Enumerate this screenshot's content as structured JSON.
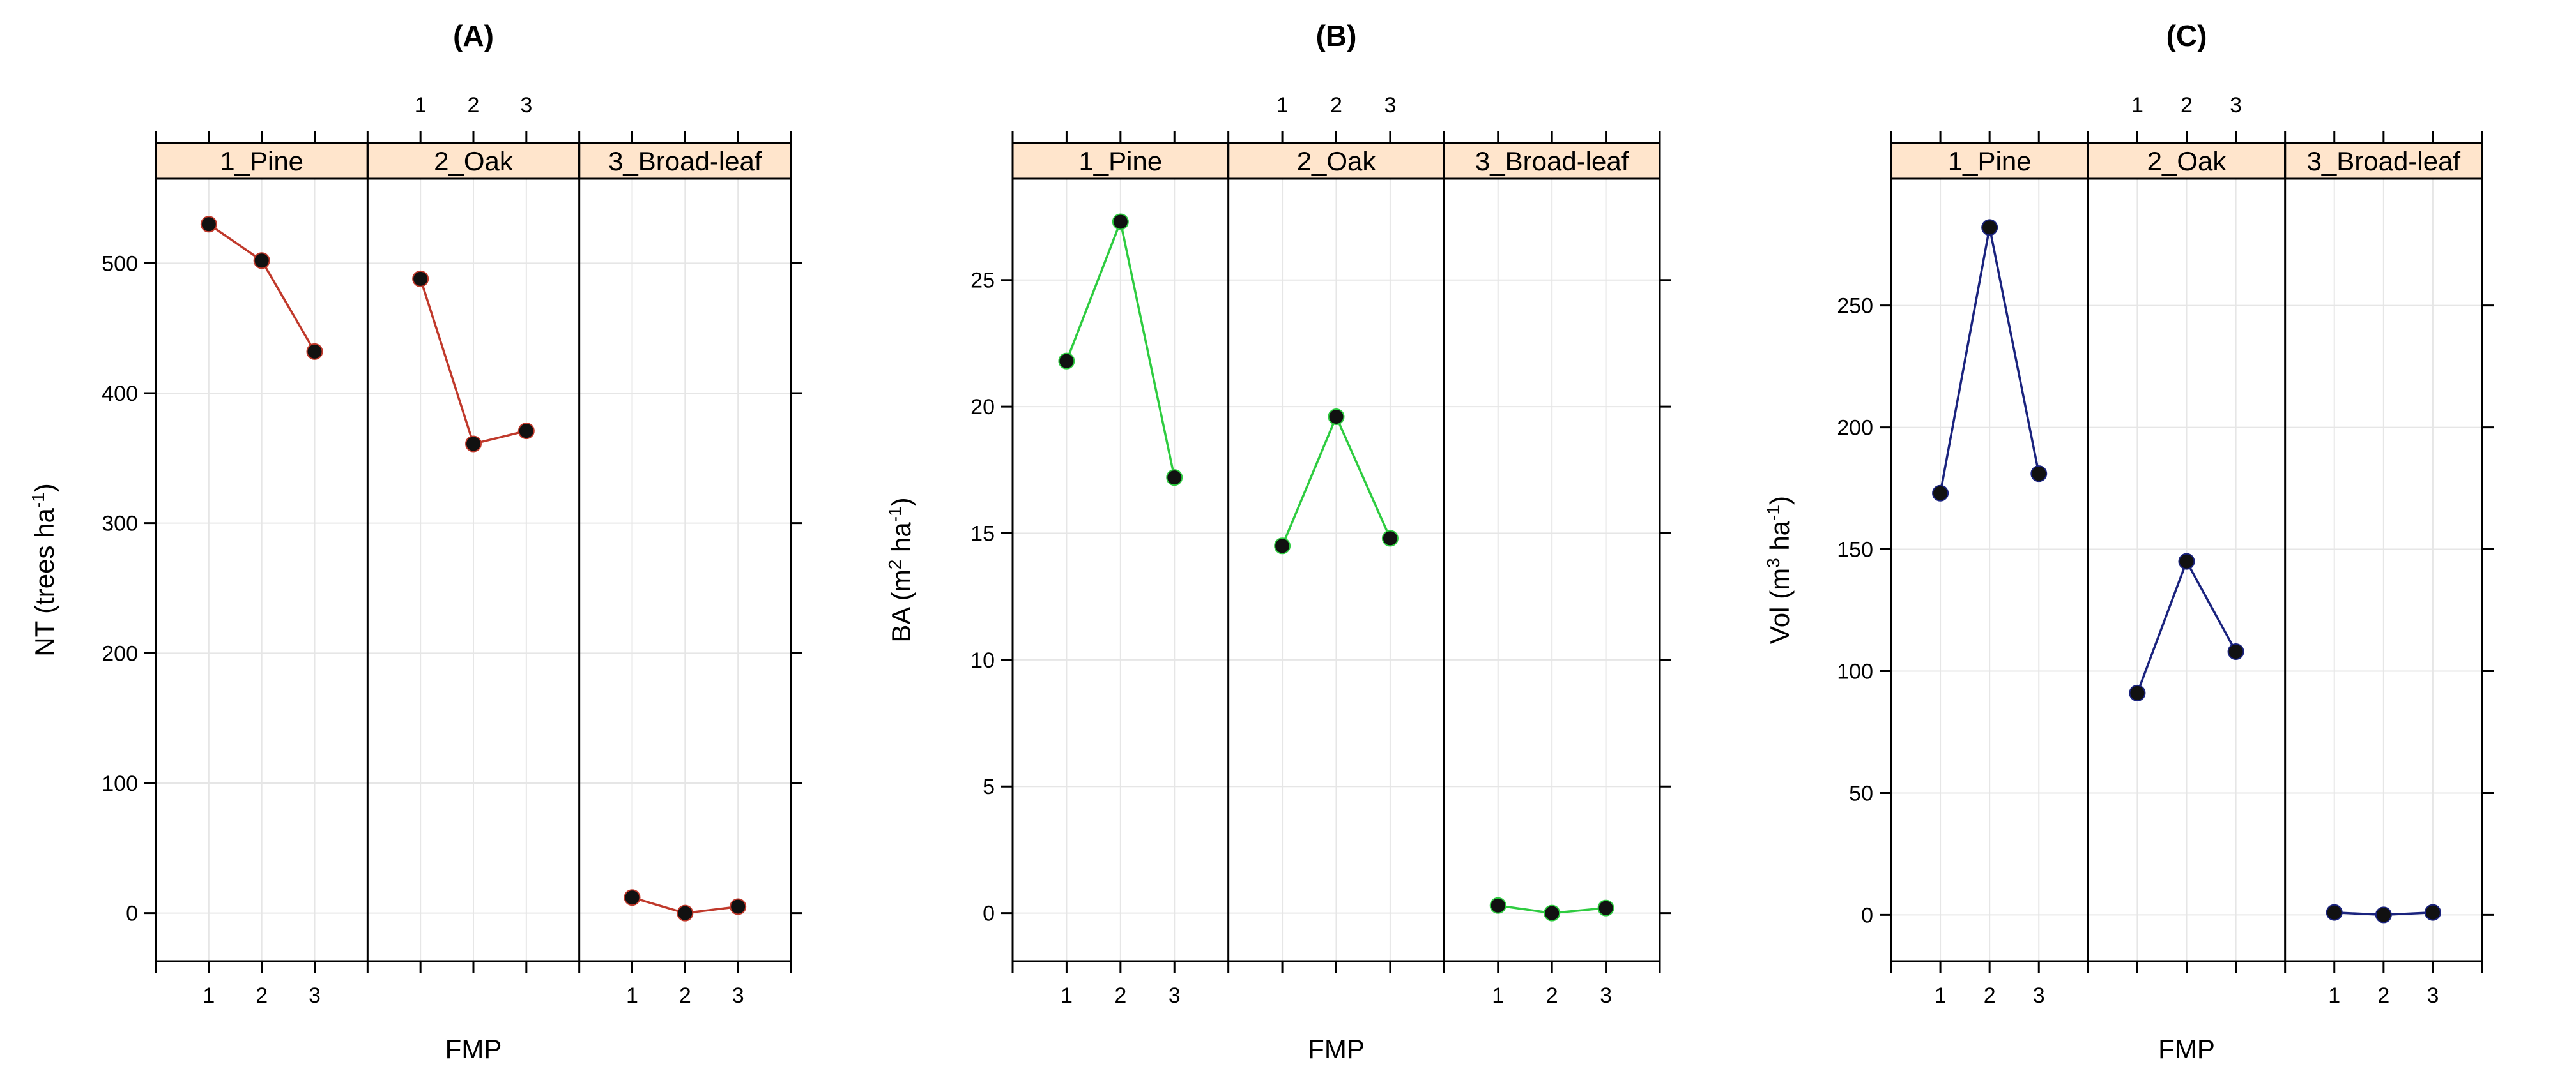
{
  "chart_data": [
    {
      "type": "line",
      "panel_label": "(A)",
      "xlabel": "FMP",
      "ylabel_base": "NT (trees ha",
      "ylabel_sup": "-1",
      "ylabel_tail": ")",
      "ylim": [
        -37,
        565
      ],
      "yticks": [
        0,
        100,
        200,
        300,
        400,
        500
      ],
      "color": "#c0392b",
      "facets": [
        {
          "name": "1_Pine",
          "x": [
            "1",
            "2",
            "3"
          ],
          "values": [
            530,
            502,
            432
          ]
        },
        {
          "name": "2_Oak",
          "x": [
            "1",
            "2",
            "3"
          ],
          "values": [
            488,
            361,
            371
          ]
        },
        {
          "name": "3_Broad-leaf",
          "x": [
            "1",
            "2",
            "3"
          ],
          "values": [
            12,
            0,
            5
          ]
        }
      ]
    },
    {
      "type": "line",
      "panel_label": "(B)",
      "xlabel": "FMP",
      "ylabel_base": "BA (m",
      "ylabel_sup": "2",
      "ylabel_tail": " ha",
      "ylabel_sup2": "-1",
      "ylabel_end": ")",
      "ylim": [
        -1.9,
        29.0
      ],
      "yticks": [
        0,
        5,
        10,
        15,
        20,
        25
      ],
      "color": "#2ecc40",
      "facets": [
        {
          "name": "1_Pine",
          "x": [
            "1",
            "2",
            "3"
          ],
          "values": [
            21.8,
            27.3,
            17.2
          ]
        },
        {
          "name": "2_Oak",
          "x": [
            "1",
            "2",
            "3"
          ],
          "values": [
            14.5,
            19.6,
            14.8
          ]
        },
        {
          "name": "3_Broad-leaf",
          "x": [
            "1",
            "2",
            "3"
          ],
          "values": [
            0.3,
            0.0,
            0.2
          ]
        }
      ]
    },
    {
      "type": "line",
      "panel_label": "(C)",
      "xlabel": "FMP",
      "ylabel_base": "Vol (m",
      "ylabel_sup": "3",
      "ylabel_tail": " ha",
      "ylabel_sup2": "-1",
      "ylabel_end": ")",
      "ylim": [
        -19,
        302
      ],
      "yticks": [
        0,
        50,
        100,
        150,
        200,
        250
      ],
      "color": "#1a237e",
      "facets": [
        {
          "name": "1_Pine",
          "x": [
            "1",
            "2",
            "3"
          ],
          "values": [
            173,
            282,
            181
          ]
        },
        {
          "name": "2_Oak",
          "x": [
            "1",
            "2",
            "3"
          ],
          "values": [
            91,
            145,
            108
          ]
        },
        {
          "name": "3_Broad-leaf",
          "x": [
            "1",
            "2",
            "3"
          ],
          "values": [
            1,
            0,
            1
          ]
        }
      ]
    }
  ]
}
